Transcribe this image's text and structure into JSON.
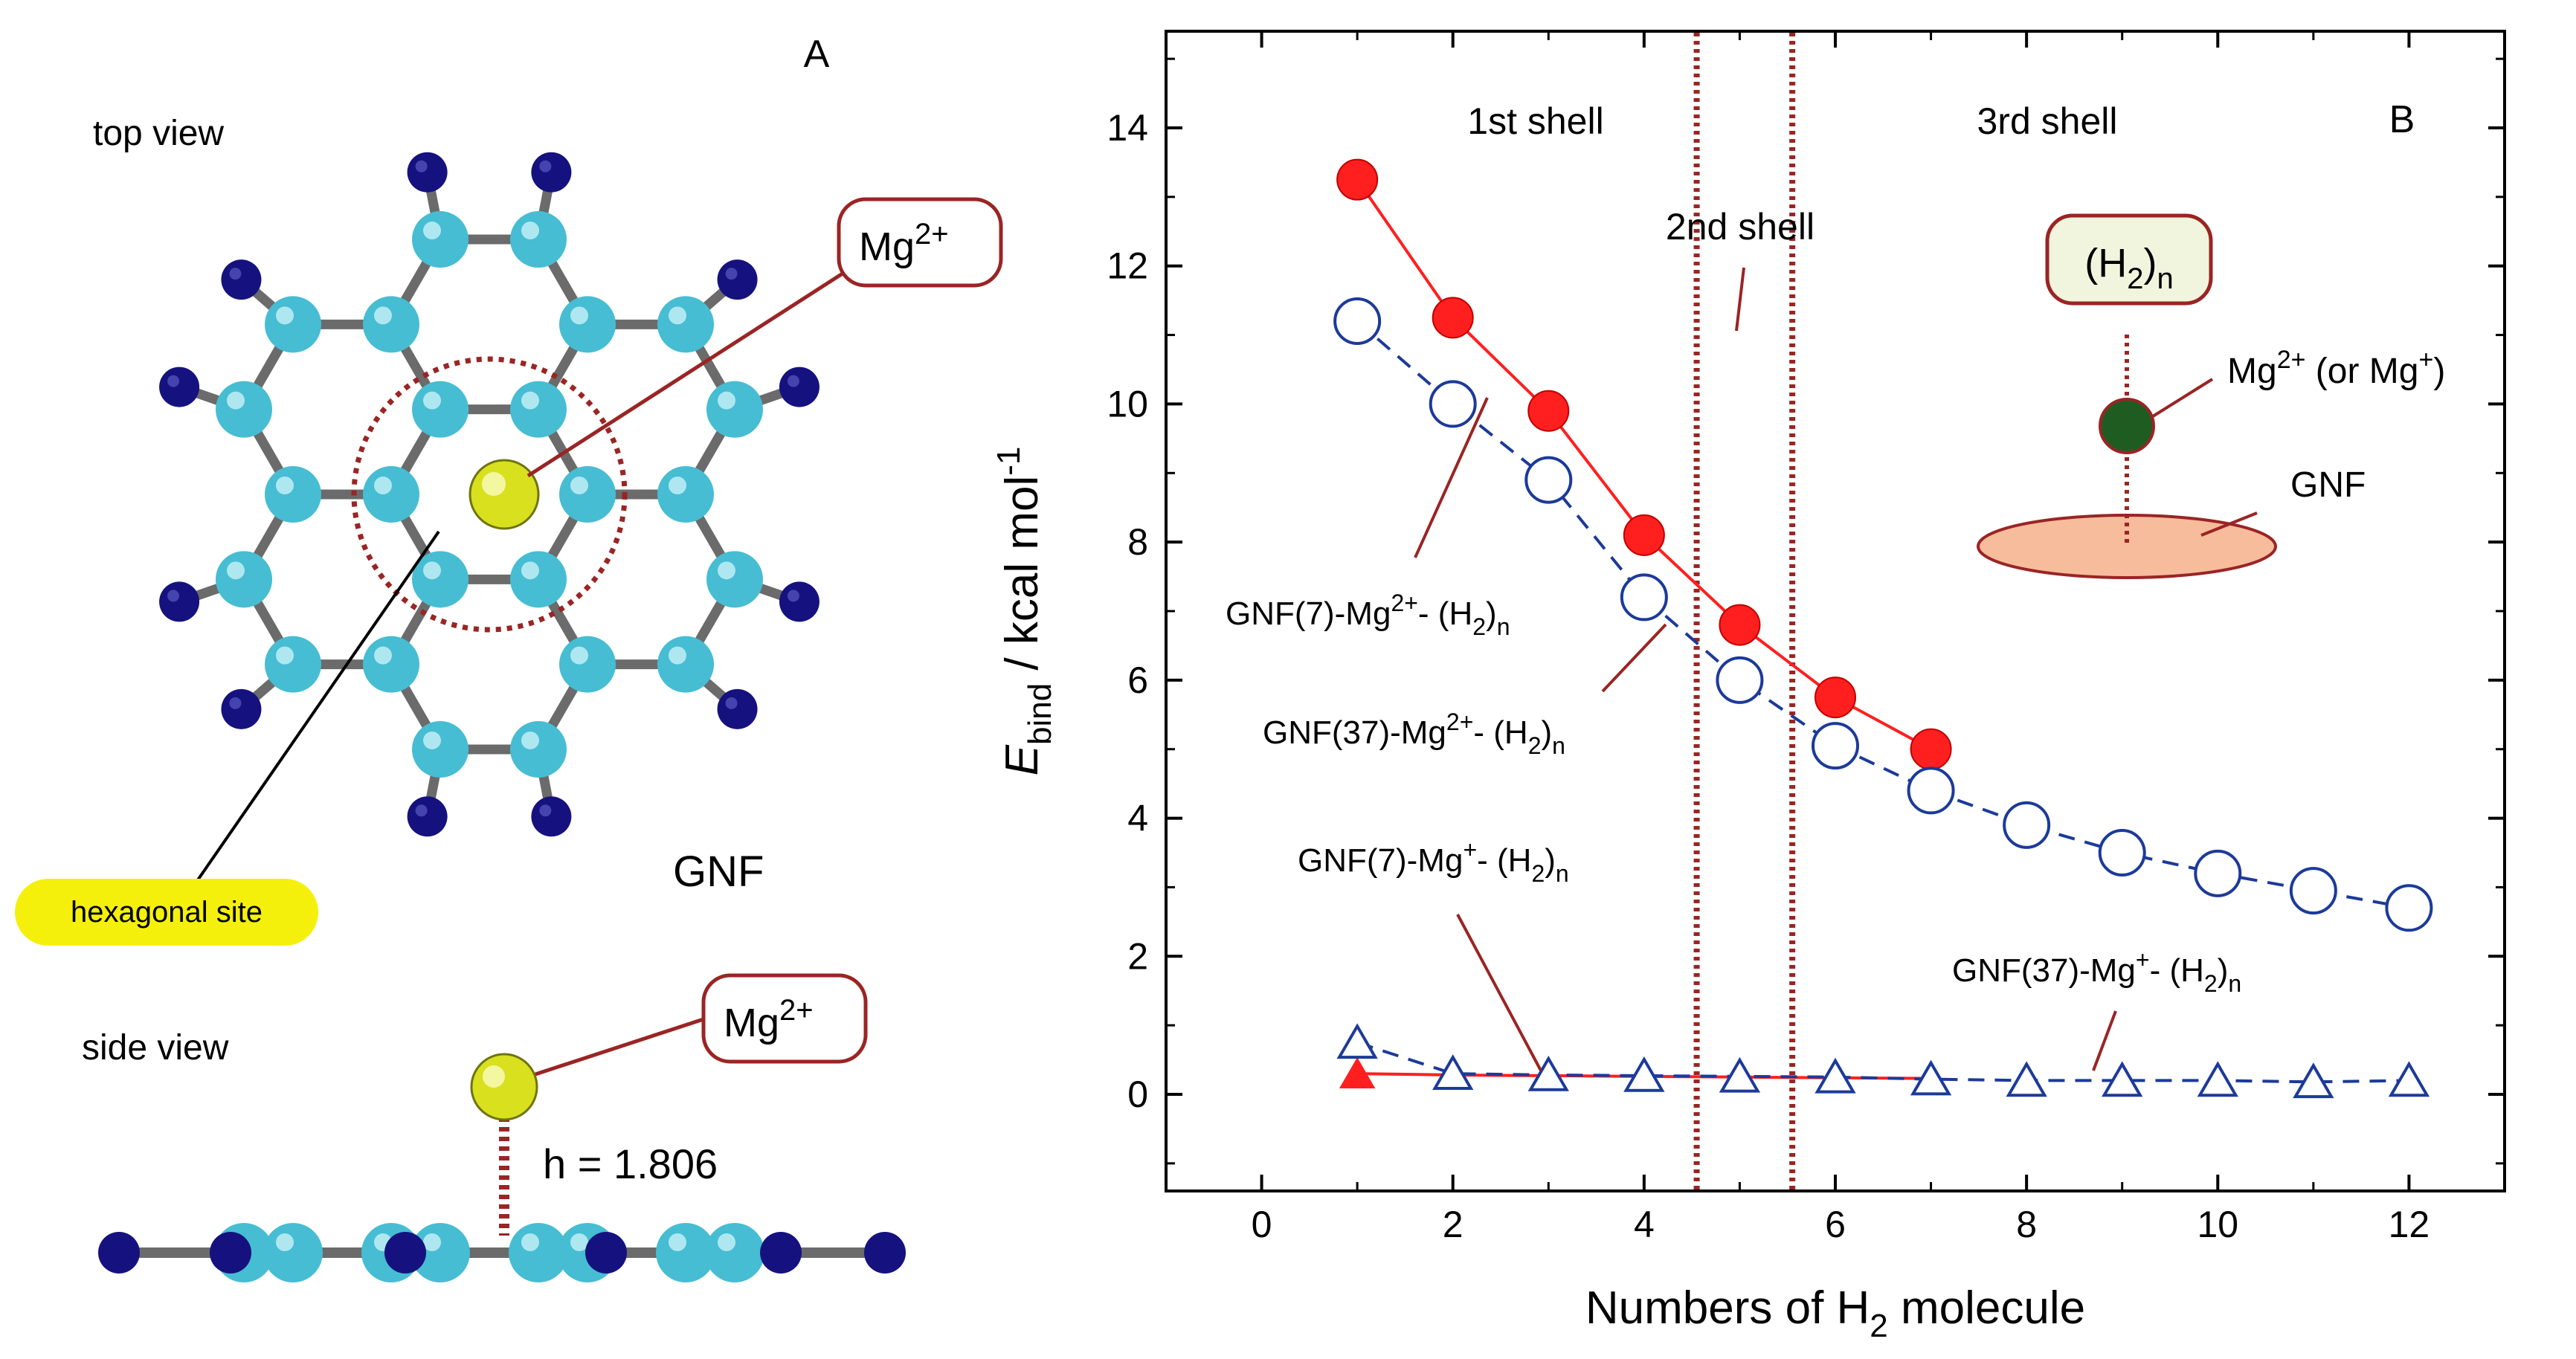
{
  "panel_a": {
    "panel_letter": "A",
    "top_view_label": "top view",
    "side_view_label": "side view",
    "gnf_label": "GNF",
    "hexagonal_site_label": "hexagonal site",
    "ion_label_base": "Mg",
    "ion_label_sup": "2+",
    "height_label": "h = 1.806",
    "colors": {
      "carbon": "#46bdd3",
      "hydrogen": "#15127f",
      "magnesium": "#d9e01e",
      "bond": "#6b6b6b",
      "annotation": "#9b2424"
    }
  },
  "panel_b": {
    "panel_letter": "B",
    "shell_labels": {
      "first": "1st shell",
      "second": "2nd shell",
      "third": "3rd shell"
    },
    "inset": {
      "h2_label_base": "(H",
      "h2_label_sub": "2",
      "h2_label_close": ")",
      "h2_label_n": "n",
      "mg_label": "Mg",
      "mg_sup": "2+",
      "mg_mid": " (or Mg",
      "mg_sup2": "+",
      "mg_end": ")",
      "gnf_label": "GNF",
      "colors": {
        "box_fill": "#f1f5dd",
        "mg_fill": "#1f5c22",
        "gnf_fill": "#f6bc9c"
      }
    },
    "series_labels": {
      "s1": [
        "GNF(7)-Mg",
        "2+",
        "- (H",
        "2",
        ")",
        "n"
      ],
      "s2": [
        "GNF(37)-Mg",
        "2+",
        "- (H",
        "2",
        ")",
        "n"
      ],
      "s3": [
        "GNF(7)-Mg",
        "+",
        "- (H",
        "2",
        ")",
        "n"
      ],
      "s4": [
        "GNF(37)-Mg",
        "+",
        "- (H",
        "2",
        ")",
        "n"
      ]
    }
  },
  "chart_data": {
    "type": "line",
    "title": "",
    "xlabel": "Numbers of H2 molecule",
    "xlabel_parts": [
      "Numbers of H",
      "2",
      " molecule"
    ],
    "ylabel": "Ebind / kcal mol-1",
    "ylabel_parts": [
      "E",
      "bind",
      " / kcal mol",
      "-1"
    ],
    "xlim": [
      -1,
      13
    ],
    "ylim": [
      -1.4,
      15.4
    ],
    "xticks": [
      0,
      2,
      4,
      6,
      8,
      10,
      12
    ],
    "yticks": [
      0,
      2,
      4,
      6,
      8,
      10,
      12,
      14
    ],
    "shell_boundaries": [
      4.55,
      5.55
    ],
    "grid": false,
    "series": [
      {
        "name": "GNF(7)-Mg2+-(H2)n",
        "marker": "filled-circle",
        "line": "solid",
        "color": "#ff1f1f",
        "x": [
          1,
          2,
          3,
          4,
          5,
          6,
          7
        ],
        "y": [
          13.25,
          11.25,
          9.9,
          8.1,
          6.8,
          5.75,
          5.0
        ]
      },
      {
        "name": "GNF(37)-Mg2+-(H2)n",
        "marker": "open-circle",
        "line": "dashed",
        "color": "#1c3a9a",
        "x": [
          1,
          2,
          3,
          4,
          5,
          6,
          7,
          8,
          9,
          10,
          11,
          12
        ],
        "y": [
          11.2,
          10.0,
          8.9,
          7.2,
          6.0,
          5.05,
          4.4,
          3.9,
          3.5,
          3.2,
          2.95,
          2.7
        ]
      },
      {
        "name": "GNF(7)-Mg+-(H2)n",
        "marker": "filled-triangle",
        "line": "solid",
        "color": "#ff1f1f",
        "x": [
          1,
          2,
          3,
          4,
          5,
          6,
          7
        ],
        "y": [
          0.3,
          0.28,
          0.27,
          0.26,
          0.25,
          0.24,
          0.23
        ]
      },
      {
        "name": "GNF(37)-Mg+-(H2)n",
        "marker": "open-triangle",
        "line": "dashed",
        "color": "#1c3a9a",
        "x": [
          1,
          2,
          3,
          4,
          5,
          6,
          7,
          8,
          9,
          10,
          11,
          12
        ],
        "y": [
          0.75,
          0.3,
          0.28,
          0.27,
          0.26,
          0.25,
          0.22,
          0.2,
          0.2,
          0.2,
          0.18,
          0.2
        ]
      }
    ]
  }
}
